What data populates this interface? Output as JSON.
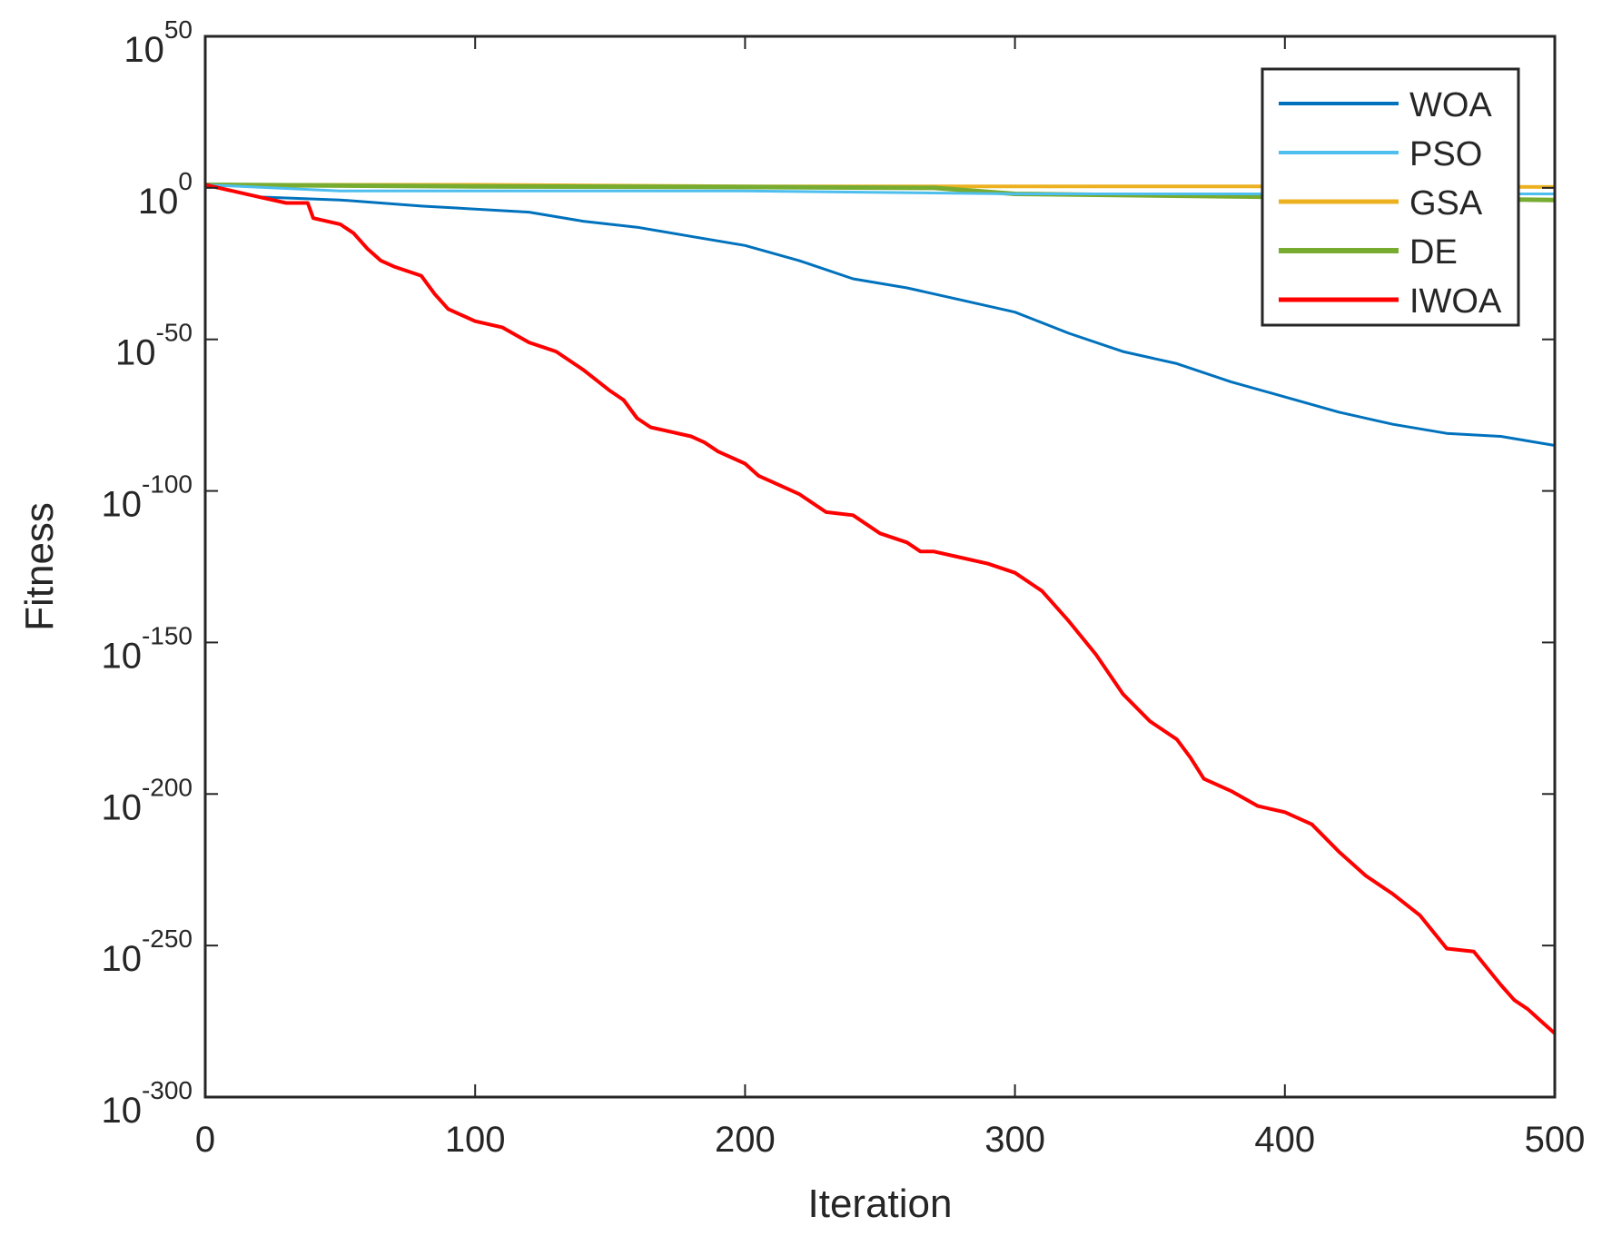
{
  "chart_data": {
    "type": "line",
    "title": "",
    "xlabel": "Iteration",
    "ylabel": "Fitness",
    "xlim": [
      0,
      500
    ],
    "ylim_exponent": [
      -300,
      50
    ],
    "y_scale": "log",
    "x_ticks": [
      "0",
      "100",
      "200",
      "300",
      "400",
      "500"
    ],
    "y_ticks": [
      {
        "base": "10",
        "exp": "50"
      },
      {
        "base": "10",
        "exp": "0"
      },
      {
        "base": "10",
        "exp": "-50"
      },
      {
        "base": "10",
        "exp": "-100"
      },
      {
        "base": "10",
        "exp": "-150"
      },
      {
        "base": "10",
        "exp": "-200"
      },
      {
        "base": "10",
        "exp": "-250"
      },
      {
        "base": "10",
        "exp": "-300"
      }
    ],
    "grid": false,
    "legend_position": "top-right",
    "series": [
      {
        "name": "WOA",
        "color": "#0072BD",
        "width": 3,
        "x": [
          0,
          20,
          50,
          80,
          100,
          120,
          140,
          160,
          180,
          200,
          220,
          240,
          260,
          280,
          300,
          320,
          340,
          360,
          380,
          400,
          420,
          440,
          460,
          480,
          500
        ],
        "y_exp": [
          1,
          -3,
          -4,
          -6,
          -7,
          -8,
          -11,
          -13,
          -16,
          -19,
          -24,
          -30,
          -33,
          -37,
          -41,
          -48,
          -54,
          -58,
          -64,
          -69,
          -74,
          -78,
          -81,
          -82,
          -85
        ]
      },
      {
        "name": "PSO",
        "color": "#4DBEEE",
        "width": 3,
        "x": [
          0,
          50,
          100,
          200,
          300,
          400,
          500
        ],
        "y_exp": [
          1,
          -1,
          -1,
          -1,
          -2,
          -2,
          -2
        ]
      },
      {
        "name": "GSA",
        "color": "#EDB120",
        "width": 4,
        "x": [
          0,
          100,
          200,
          300,
          400,
          500
        ],
        "y_exp": [
          1,
          1,
          0.5,
          0.5,
          0.5,
          0.3
        ]
      },
      {
        "name": "DE",
        "color": "#77AC30",
        "width": 5,
        "x": [
          0,
          100,
          200,
          270,
          300,
          400,
          500
        ],
        "y_exp": [
          1,
          0.5,
          0.3,
          0,
          -2,
          -3,
          -4
        ]
      },
      {
        "name": "IWOA",
        "color": "#FF0000",
        "width": 4,
        "x": [
          0,
          10,
          20,
          30,
          38,
          40,
          50,
          55,
          60,
          65,
          70,
          80,
          85,
          90,
          100,
          110,
          120,
          130,
          140,
          150,
          155,
          160,
          165,
          170,
          180,
          185,
          190,
          200,
          205,
          210,
          220,
          230,
          240,
          250,
          260,
          265,
          270,
          280,
          290,
          300,
          310,
          320,
          330,
          340,
          350,
          360,
          365,
          370,
          380,
          390,
          400,
          410,
          420,
          430,
          440,
          450,
          460,
          470,
          480,
          485,
          490,
          495,
          500
        ],
        "y_exp": [
          1,
          -1,
          -3,
          -5,
          -5,
          -10,
          -12,
          -15,
          -20,
          -24,
          -26,
          -29,
          -35,
          -40,
          -44,
          -46,
          -51,
          -54,
          -60,
          -67,
          -70,
          -76,
          -79,
          -80,
          -82,
          -84,
          -87,
          -91,
          -95,
          -97,
          -101,
          -107,
          -108,
          -114,
          -117,
          -120,
          -120,
          -122,
          -124,
          -127,
          -133,
          -143,
          -154,
          -167,
          -176,
          -182,
          -188,
          -195,
          -199,
          -204,
          -206,
          -210,
          -219,
          -227,
          -233,
          -240,
          -251,
          -252,
          -263,
          -268,
          -271,
          -275,
          -279
        ]
      }
    ]
  }
}
